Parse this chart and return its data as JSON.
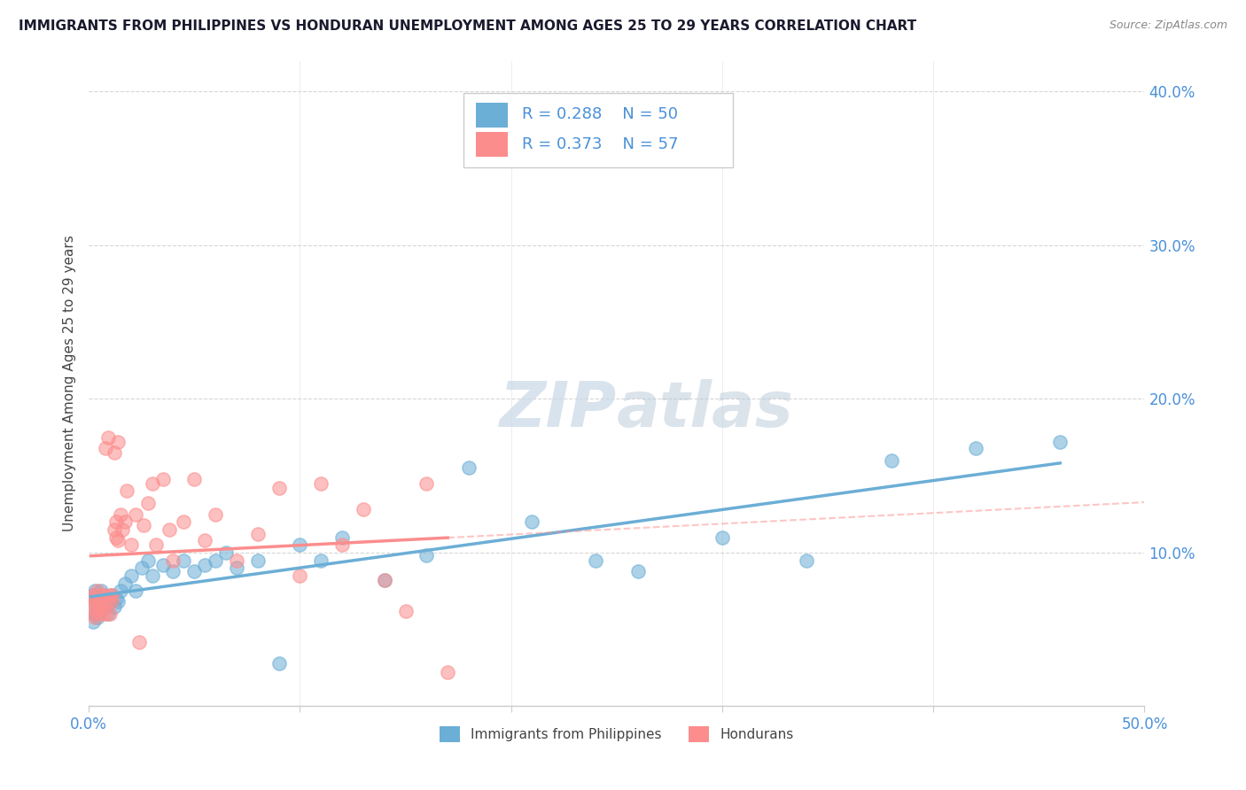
{
  "title": "IMMIGRANTS FROM PHILIPPINES VS HONDURAN UNEMPLOYMENT AMONG AGES 25 TO 29 YEARS CORRELATION CHART",
  "source": "Source: ZipAtlas.com",
  "ylabel": "Unemployment Among Ages 25 to 29 years",
  "xlim": [
    0.0,
    0.5
  ],
  "ylim": [
    0.0,
    0.42
  ],
  "xticks": [
    0.0,
    0.1,
    0.2,
    0.3,
    0.4,
    0.5
  ],
  "xticklabels": [
    "0.0%",
    "",
    "",
    "",
    "",
    "50.0%"
  ],
  "yticks": [
    0.0,
    0.1,
    0.2,
    0.3,
    0.4
  ],
  "yticklabels": [
    "",
    "10.0%",
    "20.0%",
    "30.0%",
    "40.0%"
  ],
  "legend1_label": "Immigrants from Philippines",
  "legend2_label": "Hondurans",
  "R1": 0.288,
  "N1": 50,
  "R2": 0.373,
  "N2": 57,
  "color1": "#6baed6",
  "color2": "#fc8d8d",
  "watermark": "ZIPatlas",
  "philippines_x": [
    0.001,
    0.002,
    0.002,
    0.003,
    0.003,
    0.004,
    0.004,
    0.005,
    0.005,
    0.006,
    0.006,
    0.007,
    0.008,
    0.009,
    0.01,
    0.011,
    0.012,
    0.013,
    0.014,
    0.015,
    0.017,
    0.02,
    0.022,
    0.025,
    0.028,
    0.03,
    0.035,
    0.04,
    0.045,
    0.05,
    0.055,
    0.06,
    0.065,
    0.07,
    0.08,
    0.09,
    0.1,
    0.11,
    0.12,
    0.14,
    0.16,
    0.18,
    0.21,
    0.24,
    0.26,
    0.3,
    0.34,
    0.38,
    0.42,
    0.46
  ],
  "philippines_y": [
    0.068,
    0.055,
    0.072,
    0.06,
    0.075,
    0.065,
    0.058,
    0.07,
    0.062,
    0.075,
    0.068,
    0.072,
    0.065,
    0.06,
    0.068,
    0.072,
    0.065,
    0.07,
    0.068,
    0.075,
    0.08,
    0.085,
    0.075,
    0.09,
    0.095,
    0.085,
    0.092,
    0.088,
    0.095,
    0.088,
    0.092,
    0.095,
    0.1,
    0.09,
    0.095,
    0.028,
    0.105,
    0.095,
    0.11,
    0.082,
    0.098,
    0.155,
    0.12,
    0.095,
    0.088,
    0.11,
    0.095,
    0.16,
    0.168,
    0.172
  ],
  "hondurans_x": [
    0.001,
    0.001,
    0.002,
    0.002,
    0.003,
    0.003,
    0.004,
    0.004,
    0.005,
    0.005,
    0.006,
    0.006,
    0.007,
    0.007,
    0.008,
    0.008,
    0.009,
    0.009,
    0.01,
    0.01,
    0.011,
    0.011,
    0.012,
    0.012,
    0.013,
    0.013,
    0.014,
    0.014,
    0.015,
    0.016,
    0.017,
    0.018,
    0.02,
    0.022,
    0.024,
    0.026,
    0.028,
    0.03,
    0.032,
    0.035,
    0.038,
    0.04,
    0.045,
    0.05,
    0.055,
    0.06,
    0.07,
    0.08,
    0.09,
    0.1,
    0.11,
    0.12,
    0.13,
    0.14,
    0.15,
    0.16,
    0.17
  ],
  "hondurans_y": [
    0.065,
    0.07,
    0.06,
    0.072,
    0.058,
    0.068,
    0.062,
    0.075,
    0.065,
    0.072,
    0.06,
    0.068,
    0.065,
    0.072,
    0.06,
    0.168,
    0.175,
    0.068,
    0.072,
    0.06,
    0.068,
    0.072,
    0.165,
    0.115,
    0.12,
    0.11,
    0.172,
    0.108,
    0.125,
    0.115,
    0.12,
    0.14,
    0.105,
    0.125,
    0.042,
    0.118,
    0.132,
    0.145,
    0.105,
    0.148,
    0.115,
    0.095,
    0.12,
    0.148,
    0.108,
    0.125,
    0.095,
    0.112,
    0.142,
    0.085,
    0.145,
    0.105,
    0.128,
    0.082,
    0.062,
    0.145,
    0.022
  ]
}
